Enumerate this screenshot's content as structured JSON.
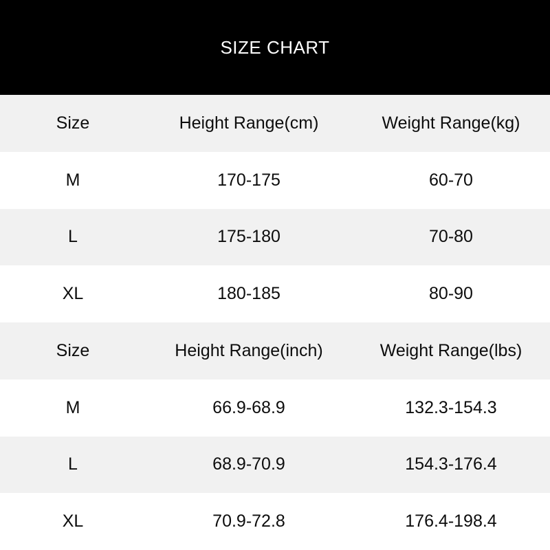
{
  "banner": {
    "title": "SIZE CHART"
  },
  "colors": {
    "banner_bg": "#000000",
    "banner_text": "#ffffff",
    "row_shaded_bg": "#f1f1f1",
    "row_plain_bg": "#ffffff",
    "cell_text": "#0d0d0d"
  },
  "size_chart": {
    "sections": [
      {
        "columns": [
          "Size",
          "Height Range(cm)",
          "Weight Range(kg)"
        ],
        "rows": [
          [
            "M",
            "170-175",
            "60-70"
          ],
          [
            "L",
            "175-180",
            "70-80"
          ],
          [
            "XL",
            "180-185",
            "80-90"
          ]
        ]
      },
      {
        "columns": [
          "Size",
          "Height Range(inch)",
          "Weight Range(lbs)"
        ],
        "rows": [
          [
            "M",
            "66.9-68.9",
            "132.3-154.3"
          ],
          [
            "L",
            "68.9-70.9",
            "154.3-176.4"
          ],
          [
            "XL",
            "70.9-72.8",
            "176.4-198.4"
          ]
        ]
      }
    ]
  }
}
